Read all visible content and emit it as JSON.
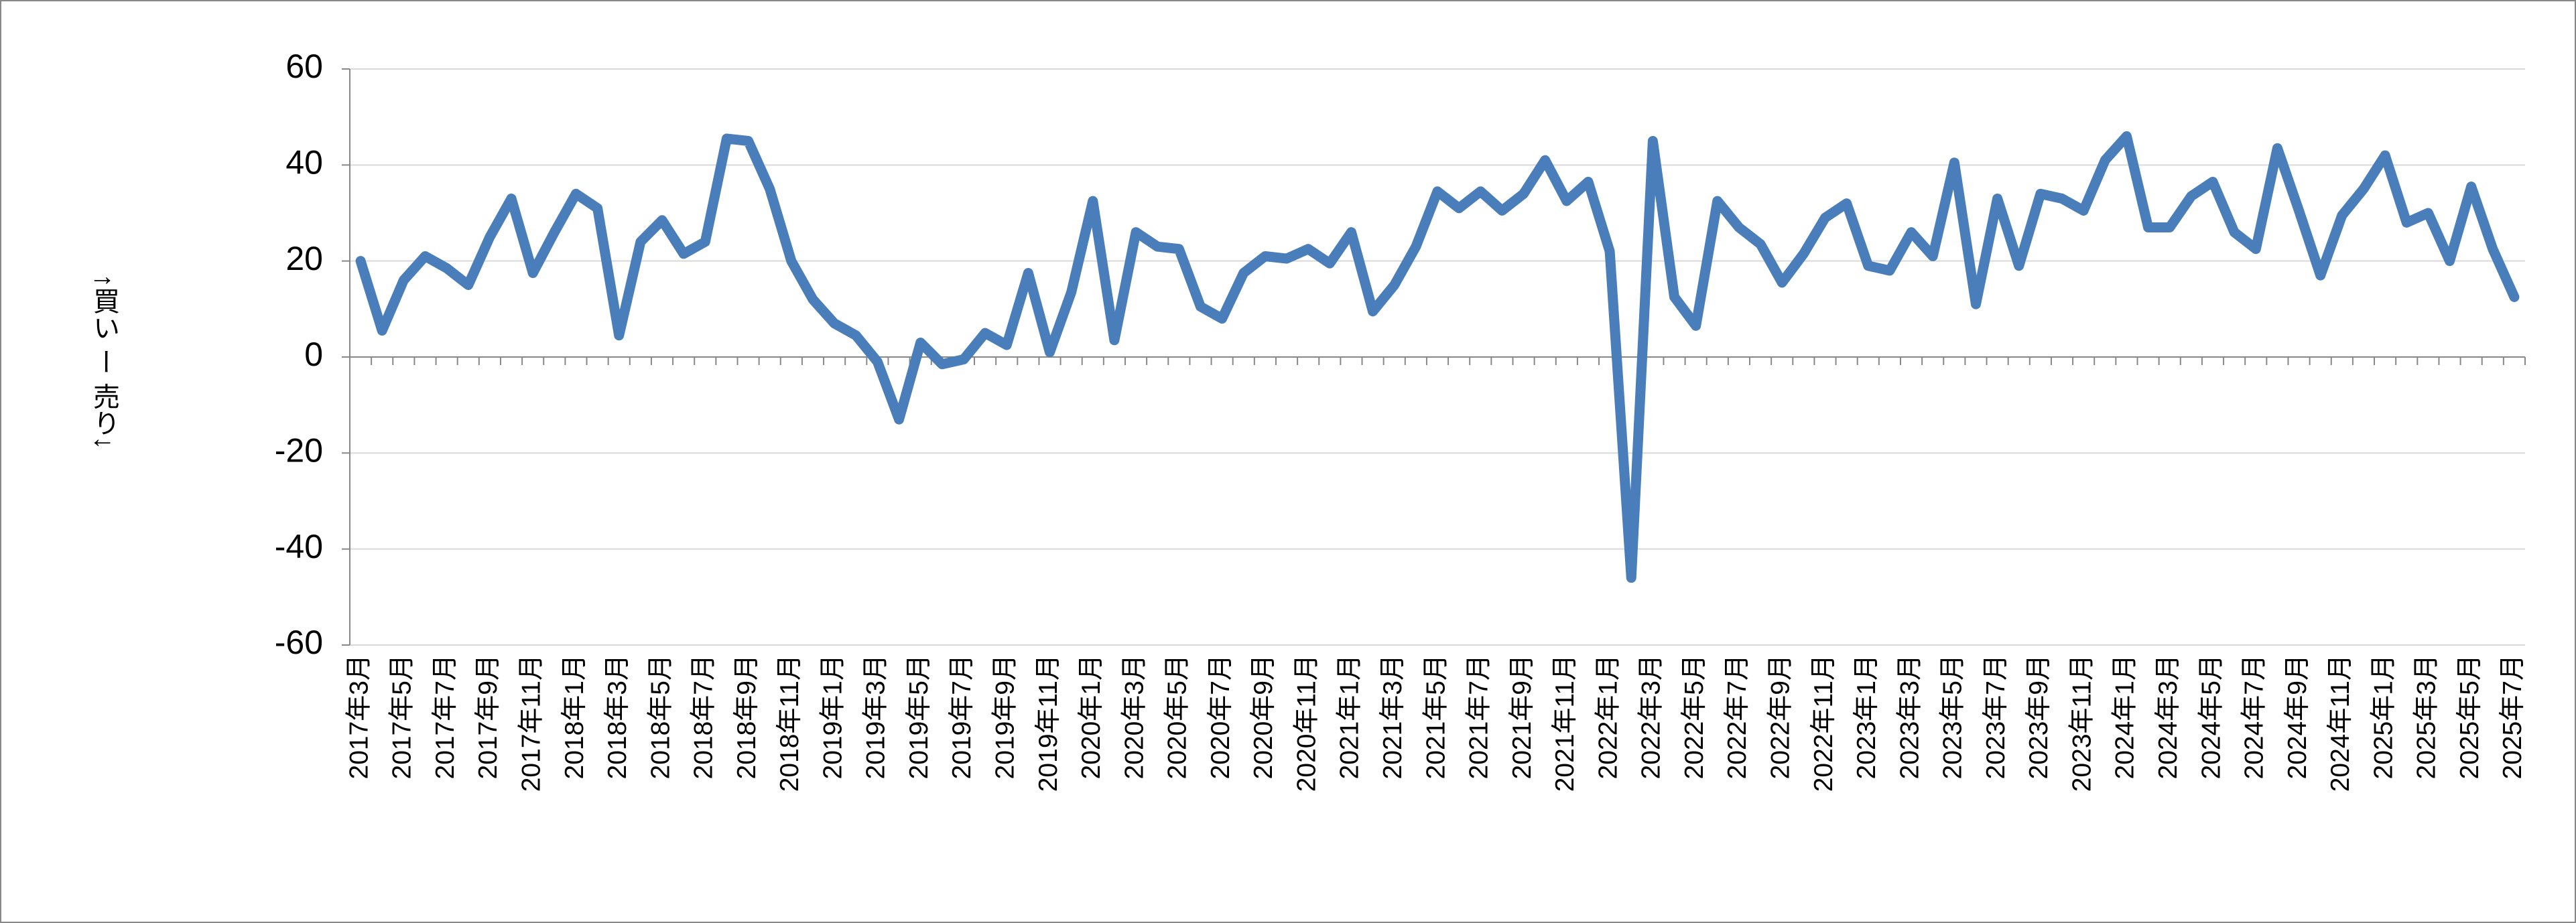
{
  "chart_data": {
    "type": "line",
    "y_label": "↑買い ー 売り↓",
    "categories": [
      "2017年3月",
      null,
      "2017年5月",
      null,
      "2017年7月",
      null,
      "2017年9月",
      null,
      "2017年11月",
      null,
      "2018年1月",
      null,
      "2018年3月",
      null,
      "2018年5月",
      null,
      "2018年7月",
      null,
      "2018年9月",
      null,
      "2018年11月",
      null,
      "2019年1月",
      null,
      "2019年3月",
      null,
      "2019年5月",
      null,
      "2019年7月",
      null,
      "2019年9月",
      null,
      "2019年11月",
      null,
      "2020年1月",
      null,
      "2020年3月",
      null,
      "2020年5月",
      null,
      "2020年7月",
      null,
      "2020年9月",
      null,
      "2020年11月",
      null,
      "2021年1月",
      null,
      "2021年3月",
      null,
      "2021年5月",
      null,
      "2021年7月",
      null,
      "2021年9月",
      null,
      "2021年11月",
      null,
      "2022年1月",
      null,
      "2022年3月",
      null,
      "2022年5月",
      null,
      "2022年7月",
      null,
      "2022年9月",
      null,
      "2022年11月",
      null,
      "2023年1月",
      null,
      "2023年3月",
      null,
      "2023年5月",
      null,
      "2023年7月",
      null,
      "2023年9月",
      null,
      "2023年11月",
      null,
      "2024年1月",
      null,
      "2024年3月",
      null,
      "2024年5月",
      null,
      "2024年7月",
      null,
      "2024年9月",
      null,
      "2024年11月",
      null,
      "2025年1月",
      null,
      "2025年3月",
      null,
      "2025年5月",
      null,
      "2025年7月"
    ],
    "values": [
      20,
      5.5,
      16,
      21,
      18.5,
      15,
      25,
      33,
      17.5,
      26,
      34,
      31,
      4.5,
      24,
      28.5,
      21.5,
      24,
      45.5,
      45,
      35,
      20,
      12,
      7,
      4.5,
      -1,
      -13,
      3,
      -1.5,
      -0.5,
      5,
      2.5,
      17.5,
      1,
      13.5,
      32.5,
      3.5,
      26,
      23,
      22.5,
      10.5,
      8,
      17.5,
      21,
      20.5,
      22.5,
      19.5,
      26,
      9.5,
      15,
      23,
      34.5,
      31,
      34.5,
      30.5,
      34,
      41,
      32.5,
      36.5,
      22,
      -46,
      45,
      12.5,
      6.5,
      32.5,
      27,
      23.5,
      15.5,
      21.5,
      29,
      32,
      19,
      18,
      26,
      21,
      40.5,
      11,
      33,
      19,
      34,
      33,
      30.5,
      41,
      46,
      27,
      27,
      33.5,
      36.5,
      26,
      22.5,
      43.5,
      30.5,
      17,
      29.5,
      35,
      42,
      28,
      30,
      20,
      35.5,
      22.5,
      12.5
    ],
    "color": "#4a7ebb",
    "ylim": [
      -60,
      60
    ],
    "yticks": [
      -60,
      -40,
      -20,
      0,
      20,
      40,
      60
    ],
    "grid": true
  }
}
